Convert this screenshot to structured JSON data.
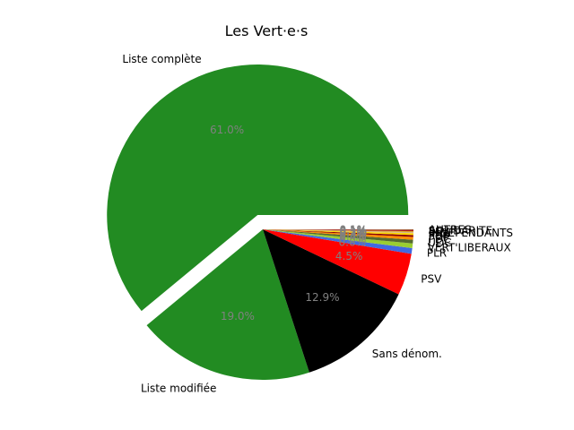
{
  "chart_data": {
    "type": "pie",
    "title": "Les Vert·e·s",
    "slices": [
      {
        "label": "Liste complète",
        "value": 61.0,
        "pct_label": "61.0%",
        "color": "#228b22",
        "explode": true
      },
      {
        "label": "Liste modifiée",
        "value": 19.0,
        "pct_label": "19.0%",
        "color": "#228b22",
        "explode": false
      },
      {
        "label": "Sans dénom.",
        "value": 12.9,
        "pct_label": "12.9%",
        "color": "#000000",
        "explode": false
      },
      {
        "label": "PSV",
        "value": 4.5,
        "pct_label": "4.5%",
        "color": "#ff0000",
        "explode": false
      },
      {
        "label": "PLR",
        "value": 0.6,
        "pct_label": "0.6%",
        "color": "#4169e1",
        "explode": false
      },
      {
        "label": "VERT'LIBERAUX",
        "value": 0.5,
        "pct_label": "0.5%",
        "color": "#9acd32",
        "explode": false
      },
      {
        "label": "UDC",
        "value": 0.4,
        "pct_label": "0.4%",
        "color": "#556b2f",
        "explode": false
      },
      {
        "label": "PDC",
        "value": 0.3,
        "pct_label": "0.3%",
        "color": "#ff8c00",
        "explode": false
      },
      {
        "label": "POP",
        "value": 0.2,
        "pct_label": "0.2%",
        "color": "#8b0000",
        "explode": false
      },
      {
        "label": "PBD",
        "value": 0.2,
        "pct_label": "0.2%",
        "color": "#ffd700",
        "explode": false
      },
      {
        "label": "INDEPENDANTS",
        "value": 0.1,
        "pct_label": "0.1%",
        "color": "#d2b48c",
        "explode": false
      },
      {
        "label": "PEV",
        "value": 0.1,
        "pct_label": "0.1%",
        "color": "#daa520",
        "explode": false
      },
      {
        "label": "SOLIDARITE",
        "value": 0.1,
        "pct_label": "0.1%",
        "color": "#b22222",
        "explode": false
      },
      {
        "label": "AUTRES",
        "value": 0.1,
        "pct_label": "0.1%",
        "color": "#a0522d",
        "explode": false
      }
    ]
  }
}
